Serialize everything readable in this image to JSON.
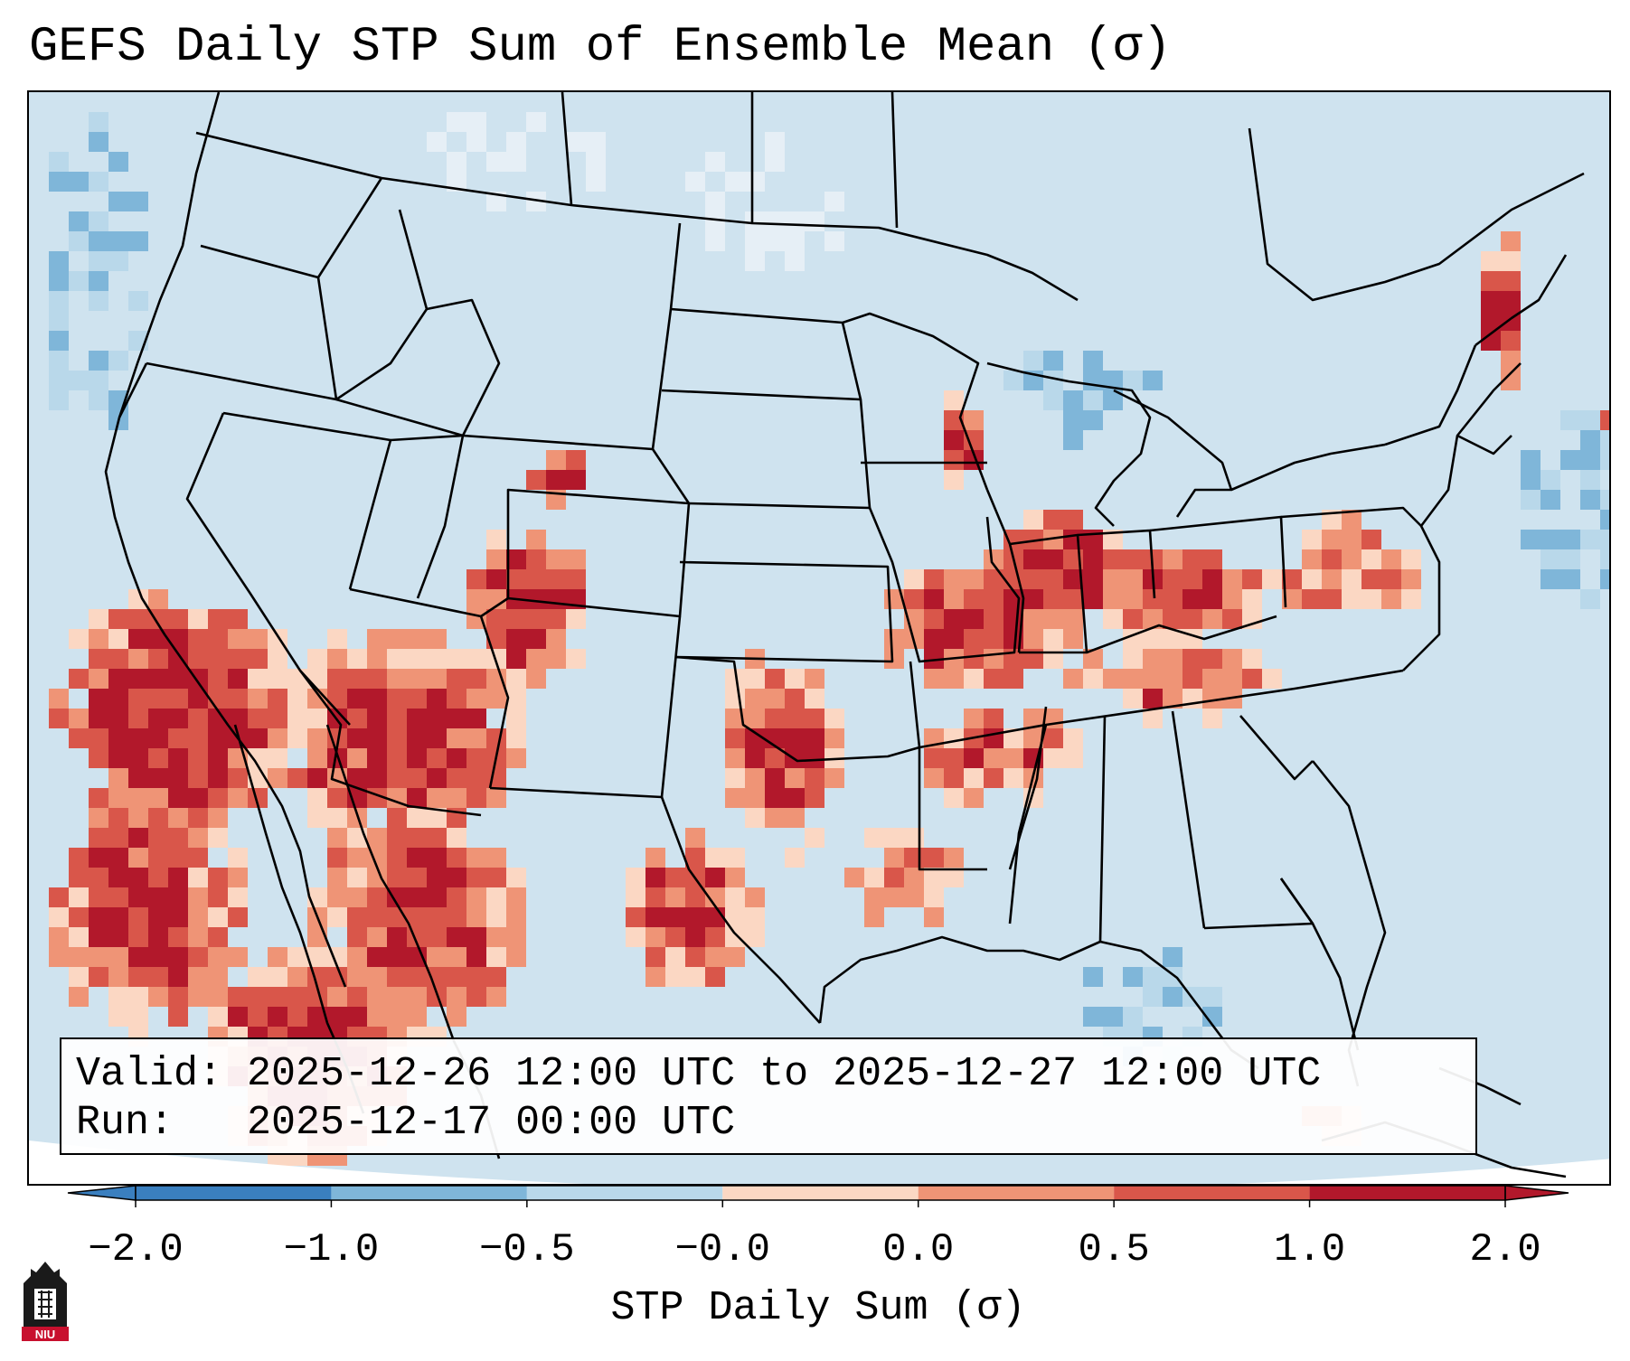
{
  "title": "GEFS Daily STP Sum of Ensemble Mean (σ)",
  "info": {
    "valid": "Valid: 2025-12-26 12:00 UTC to 2025-12-27 12:00 UTC",
    "run": "Run:   2025-12-17 00:00 UTC"
  },
  "colorbar": {
    "label": "STP Daily Sum (σ)",
    "ticks": [
      "−2.0",
      "−1.0",
      "−0.5",
      "−0.0",
      "0.0",
      "0.5",
      "1.0",
      "2.0"
    ],
    "colors": [
      "#3a7fbf",
      "#7fb6d9",
      "#b9d8ea",
      "#e6eff6",
      "#fbd7c3",
      "#ef9476",
      "#d9564a",
      "#b2182b"
    ]
  },
  "map": {
    "region": "Continental United States",
    "ocean_color": "#cfe3ef",
    "border_color": "#000000"
  },
  "logo": {
    "icon": "niu-logo-icon",
    "text": "NIU"
  }
}
